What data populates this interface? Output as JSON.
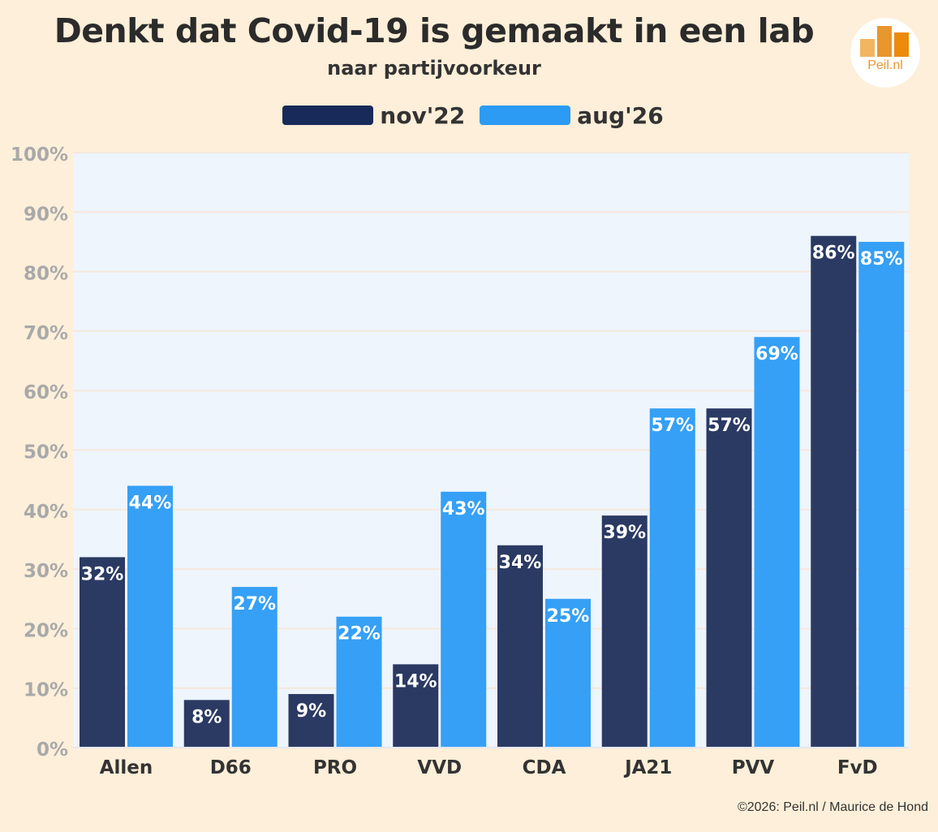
{
  "title": "Denkt dat Covid-19 is gemaakt in een lab",
  "subtitle": "naar partijvoorkeur",
  "logo": {
    "text": "Peil.nl"
  },
  "credit": "©2026: Peil.nl / Maurice de Hond",
  "colors": {
    "background": "#fdefd9",
    "plot_background": "#eef5fd",
    "series_1": "#2b3a63",
    "series_2": "#35a0f5",
    "legend_1": "#182a59",
    "legend_2": "#2b9bf4",
    "axis_label": "#a9a9a9",
    "logo_orange": "#e8962e"
  },
  "chart_data": {
    "type": "bar",
    "title": "Denkt dat Covid-19 is gemaakt in een lab",
    "subtitle": "naar partijvoorkeur",
    "categories": [
      "Allen",
      "D66",
      "PRO",
      "VVD",
      "CDA",
      "JA21",
      "PVV",
      "FvD"
    ],
    "series": [
      {
        "name": "nov'22",
        "values": [
          32,
          8,
          9,
          14,
          34,
          39,
          57,
          86
        ]
      },
      {
        "name": "aug'26",
        "values": [
          44,
          27,
          22,
          43,
          25,
          57,
          69,
          85
        ]
      }
    ],
    "ylim": [
      0,
      100
    ],
    "yticks": [
      "0%",
      "10%",
      "20%",
      "30%",
      "40%",
      "50%",
      "60%",
      "70%",
      "80%",
      "90%",
      "100%"
    ],
    "value_suffix": "%",
    "legend_position": "top-center",
    "grid": true
  }
}
